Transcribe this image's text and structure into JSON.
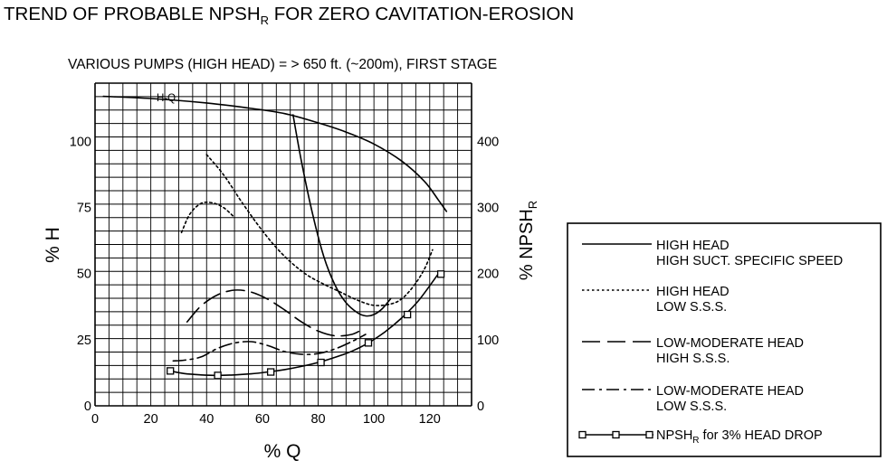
{
  "chart_data": {
    "type": "line",
    "title": "TREND OF PROBABLE NPSH",
    "title_sub": "R",
    "title_rest": " FOR ZERO CAVITATION-EROSION",
    "subtitle": "VARIOUS PUMPS (HIGH HEAD) = > 650 ft. (~200m), FIRST STAGE",
    "xlabel": "% Q",
    "ylabel_left": "% H",
    "ylabel_right": "% NPSH",
    "ylabel_right_sub": "R",
    "xlim": [
      0,
      135
    ],
    "ylim_left": [
      0,
      122
    ],
    "ylim_right": [
      0,
      488
    ],
    "grid": true,
    "x_ticks": [
      0,
      20,
      40,
      60,
      80,
      100,
      120
    ],
    "x_tick_labels": [
      "0",
      "20",
      "40",
      "60",
      "80",
      "100",
      "120"
    ],
    "y_left_ticks": [
      0,
      25,
      50,
      75,
      100
    ],
    "y_left_tick_labels": [
      "0",
      "25",
      "50",
      "75",
      "100"
    ],
    "y_right_ticks": [
      0,
      100,
      200,
      300,
      400
    ],
    "y_right_tick_labels": [
      "0",
      "100",
      "200",
      "300",
      "400"
    ],
    "annotations": [
      {
        "text": "H-Q",
        "x": 13,
        "y": 116.5
      }
    ],
    "series": [
      {
        "key": "hq",
        "axis": "left",
        "style": "solid",
        "color": "#000000",
        "x": [
          3,
          20,
          40,
          55,
          68,
          80,
          90,
          100,
          110,
          118,
          123,
          126
        ],
        "y": [
          117,
          116.2,
          114.5,
          112.6,
          110.5,
          107,
          103.5,
          99,
          92.5,
          85,
          78,
          73.5
        ]
      },
      {
        "key": "s1",
        "name": "HIGH HEAD",
        "name2": "HIGH SUCT. SPECIFIC SPEED",
        "axis": "right",
        "style": "solid",
        "color": "#000000",
        "x": [
          71,
          74,
          78,
          82,
          86,
          90,
          94,
          97,
          100,
          103,
          106
        ],
        "y": [
          440,
          370,
          290,
          226,
          183,
          156,
          141,
          136,
          138,
          147,
          162
        ]
      },
      {
        "key": "s2",
        "name": "HIGH HEAD",
        "name2": "LOW S.S.S.",
        "axis": "right",
        "style": "dotted",
        "color": "#000000",
        "x": [
          40,
          46,
          52,
          58,
          64,
          70,
          76,
          82,
          88,
          94,
          100,
          106,
          110,
          114,
          118,
          121
        ],
        "y": [
          380,
          350,
          312,
          276,
          244,
          218,
          198,
          184,
          172,
          160,
          152,
          154,
          162,
          180,
          206,
          236
        ]
      },
      {
        "key": "s2b",
        "axis": "right",
        "style": "dotted",
        "color": "#000000",
        "x": [
          31,
          34,
          38,
          42,
          46,
          50
        ],
        "y": [
          262,
          290,
          306,
          307,
          300,
          285
        ]
      },
      {
        "key": "s3",
        "name": "LOW-MODERATE HEAD",
        "name2": "HIGH S.S.S.",
        "axis": "right",
        "style": "dashed",
        "color": "#000000",
        "x": [
          33,
          38,
          44,
          50,
          56,
          62,
          68,
          74,
          80,
          86,
          92,
          96
        ],
        "y": [
          127,
          151,
          168,
          175,
          172,
          161,
          145,
          127,
          113,
          106,
          108,
          116
        ]
      },
      {
        "key": "s4",
        "name": "LOW-MODERATE HEAD",
        "name2": "LOW S.S.S.",
        "axis": "right",
        "style": "dashdot",
        "color": "#000000",
        "x": [
          28,
          32,
          38,
          44,
          50,
          56,
          62,
          68,
          74,
          80,
          86,
          92,
          97
        ],
        "y": [
          68,
          69,
          74,
          87,
          95,
          97,
          91,
          82,
          78,
          79,
          86,
          97,
          108
        ]
      },
      {
        "key": "npshr",
        "name": "NPSH",
        "name_sub": "R",
        "name_rest": " for 3% HEAD DROP",
        "axis": "left",
        "style": "squares",
        "color": "#000000",
        "x": [
          27,
          32,
          38,
          44,
          50,
          56,
          62,
          68,
          74,
          80,
          86,
          92,
          98,
          104,
          110,
          116,
          123
        ],
        "y": [
          13.2,
          12.2,
          11.7,
          11.5,
          11.7,
          12.1,
          12.8,
          13.7,
          14.9,
          16.4,
          18.3,
          20.6,
          23.8,
          28,
          33.3,
          39.8,
          49.8
        ],
        "markers_x": [
          27,
          44,
          63,
          81,
          98,
          112,
          124
        ],
        "markers_y": [
          13.2,
          11.5,
          12.8,
          16.4,
          23.8,
          34.5,
          49.8
        ]
      }
    ],
    "legend_position": "right"
  }
}
